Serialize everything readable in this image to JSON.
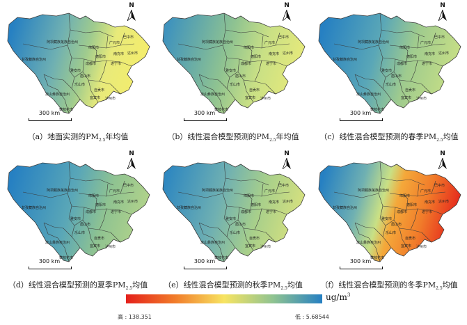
{
  "north_label": "N",
  "scale_label": "300 km",
  "city_labels": [
    "阿坝藏族羌族自治州",
    "甘孜藏族自治州",
    "凉山彝族自治州",
    "攀枝花市",
    "成都市",
    "绵阳市",
    "广元市",
    "巴中市",
    "南充市",
    "达州市",
    "德阳市",
    "遂宁市",
    "雅安市",
    "乐山市",
    "自贡市",
    "泸州市",
    "宜宾市",
    "眉山市"
  ],
  "panels": [
    {
      "tag": "（a）",
      "text": "地面实测的PM",
      "sub": "2.5",
      "suffix": "年均值"
    },
    {
      "tag": "（b）",
      "text": "线性混合模型预测的PM",
      "sub": "2.5",
      "suffix": "年均值"
    },
    {
      "tag": "（c）",
      "text": "线性混合模型预测的春季PM",
      "sub": "2.5",
      "suffix": "均值"
    },
    {
      "tag": "（d）",
      "text": "线性混合模型预测的夏季PM",
      "sub": "2.5",
      "suffix": "均值"
    },
    {
      "tag": "（e）",
      "text": "线性混合模型预测的秋季PM",
      "sub": "2.5",
      "suffix": "均值"
    },
    {
      "tag": "（f）",
      "text": "线性混合模型预测的冬季PM",
      "sub": "2.5",
      "suffix": "均值"
    }
  ],
  "legend": {
    "unit": "ug/m",
    "unit_sup": "3",
    "high_label": "高 : 138.351",
    "low_label": "低 : 5.68544",
    "colors": [
      "#e4201b",
      "#f17c2a",
      "#f7e462",
      "#8fc391",
      "#2680c2"
    ]
  }
}
